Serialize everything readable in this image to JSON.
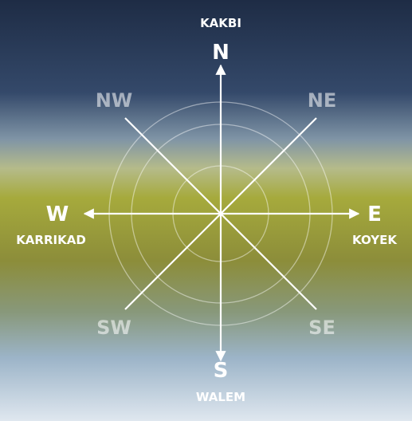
{
  "compass": {
    "north": {
      "letter": "N",
      "name": "KAKBI"
    },
    "south": {
      "letter": "S",
      "name": "WALEM"
    },
    "west": {
      "letter": "W",
      "name": "KARRIKAD"
    },
    "east": {
      "letter": "E",
      "name": "KOYEK"
    },
    "northwest": {
      "letter": "NW"
    },
    "northeast": {
      "letter": "NE"
    },
    "southwest": {
      "letter": "SW"
    },
    "southeast": {
      "letter": "SE"
    }
  }
}
